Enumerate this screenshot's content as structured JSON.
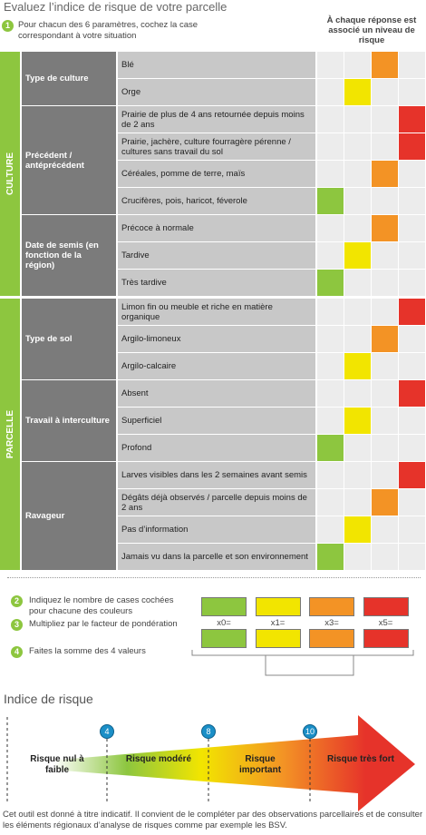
{
  "header": {
    "title": "Evaluez l’indice de risque de votre parcelle",
    "step": "1",
    "instruction": "Pour chacun des 6 paramètres, cochez la case correspondant à votre situation",
    "risk_note": "À chaque réponse est associé un niveau de risque"
  },
  "risk_colors": [
    "#8dc63f",
    "#f2e500",
    "#f39325",
    "#e6332a"
  ],
  "sections": [
    {
      "label": "CULTURE",
      "parameters": [
        {
          "label": "Type de culture",
          "options": [
            {
              "label": "Blé",
              "color": "#f39325"
            },
            {
              "label": "Orge",
              "color": "#f2e500"
            }
          ]
        },
        {
          "label": "Précédent / antéprécédent",
          "options": [
            {
              "label": "Prairie de plus de 4 ans retournée depuis moins de 2 ans",
              "color": "#e6332a"
            },
            {
              "label": "Prairie, jachère, culture fourragère pérenne / cultures sans travail du sol",
              "color": "#e6332a"
            },
            {
              "label": "Céréales, pomme de terre, maïs",
              "color": "#f39325"
            },
            {
              "label": "Crucifères, pois, haricot, féverole",
              "color": "#8dc63f"
            }
          ]
        },
        {
          "label": "Date de semis (en fonction de la région)",
          "options": [
            {
              "label": "Précoce à normale",
              "color": "#f39325"
            },
            {
              "label": "Tardive",
              "color": "#f2e500"
            },
            {
              "label": "Très tardive",
              "color": "#8dc63f"
            }
          ]
        }
      ]
    },
    {
      "label": "PARCELLE",
      "parameters": [
        {
          "label": "Type de sol",
          "options": [
            {
              "label": "Limon fin ou meuble et riche en matière organique",
              "color": "#e6332a"
            },
            {
              "label": "Argilo-limoneux",
              "color": "#f39325"
            },
            {
              "label": "Argilo-calcaire",
              "color": "#f2e500"
            }
          ]
        },
        {
          "label": "Travail à interculture",
          "options": [
            {
              "label": "Absent",
              "color": "#e6332a"
            },
            {
              "label": "Superficiel",
              "color": "#f2e500"
            },
            {
              "label": "Profond",
              "color": "#8dc63f"
            }
          ]
        },
        {
          "label": "Ravageur",
          "options": [
            {
              "label": "Larves visibles dans les 2 semaines avant semis",
              "color": "#e6332a"
            },
            {
              "label": "Dégâts déjà observés / parcelle depuis moins de 2 ans",
              "color": "#f39325"
            },
            {
              "label": "Pas d’information",
              "color": "#f2e500"
            },
            {
              "label": "Jamais vu dans la parcelle et son environnement",
              "color": "#8dc63f"
            }
          ]
        }
      ]
    }
  ],
  "steps": [
    {
      "number": "2",
      "text": "Indiquez le nombre de cases cochées pour chacune des couleurs"
    },
    {
      "number": "3",
      "text": "Multipliez par le facteur de pondération"
    },
    {
      "number": "4",
      "text": "Faites la somme des 4 valeurs"
    }
  ],
  "factors": [
    "x0=",
    "x1=",
    "x3=",
    "x5="
  ],
  "scale": {
    "title": "Indice de risque",
    "thresholds": [
      "4",
      "8",
      "10"
    ],
    "levels": [
      "Risque nul à faible",
      "Risque modéré",
      "Risque important",
      "Risque très fort"
    ]
  },
  "footer": "Cet outil est donné à titre indicatif. Il convient de le compléter par des observations parcellaires et de consulter les éléments régionaux d’analyse de risques comme par exemple les BSV."
}
